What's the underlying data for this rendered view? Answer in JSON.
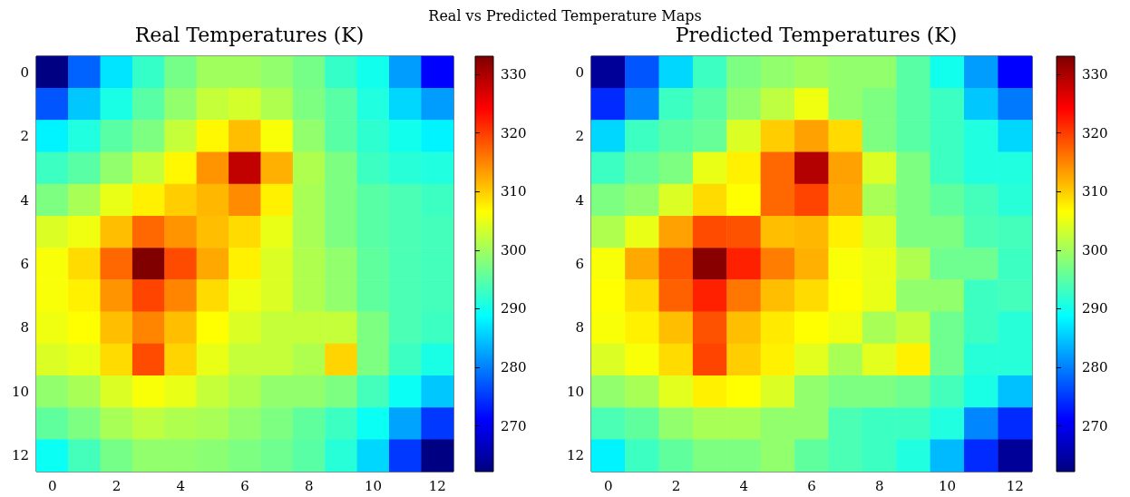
{
  "chart_data": [
    {
      "type": "heatmap",
      "title": "Real Temperatures (K)",
      "annotations": [
        "Real vs Predicted Temperature Maps"
      ],
      "categories": [
        "0",
        null,
        "2",
        null,
        "4",
        null,
        "6",
        null,
        "8",
        null,
        "10",
        null,
        "12"
      ],
      "y_categories": [
        "0",
        null,
        "2",
        null,
        "4",
        null,
        "6",
        null,
        "8",
        null,
        "10",
        null,
        "12"
      ],
      "clim": [
        262.2,
        333.1
      ],
      "cticks": [
        270,
        280,
        290,
        300,
        310,
        320,
        330
      ],
      "cells": [
        [
          262.5,
          278,
          287,
          292.5,
          297,
          300,
          300,
          299,
          297,
          292.5,
          290,
          282,
          271
        ],
        [
          277,
          285,
          290.5,
          295,
          299,
          302.5,
          303.5,
          301,
          297.5,
          295,
          291,
          286,
          282
        ],
        [
          288,
          291,
          295,
          297.5,
          302.5,
          307,
          311,
          306,
          299,
          295,
          292,
          290,
          288
        ],
        [
          293,
          295,
          299,
          302.5,
          307,
          314,
          328.5,
          312,
          301,
          297.5,
          293,
          291.5,
          291
        ],
        [
          297.5,
          300.5,
          305,
          307.5,
          310,
          311.5,
          314.5,
          307.5,
          300.5,
          297.5,
          295,
          294,
          293
        ],
        [
          304,
          305.5,
          311,
          317,
          314,
          311,
          309,
          305,
          300.5,
          297.5,
          295,
          294,
          293.5
        ],
        [
          306,
          309,
          317,
          333,
          319,
          312.5,
          307.5,
          304,
          301,
          299,
          295.5,
          294,
          293.5
        ],
        [
          306,
          307.5,
          314,
          319.5,
          315,
          309,
          305.5,
          304,
          301,
          299,
          295.5,
          294,
          293.5
        ],
        [
          305.5,
          306.5,
          311,
          315,
          311,
          306.5,
          304,
          302.5,
          302.5,
          302.5,
          297.5,
          294,
          293
        ],
        [
          304,
          305,
          309,
          319,
          309.5,
          305,
          302.5,
          302.5,
          301,
          309.5,
          297.5,
          293,
          290.5
        ],
        [
          299,
          300.5,
          304,
          306,
          305,
          302.5,
          301,
          299,
          299,
          297.5,
          293.5,
          289.5,
          285
        ],
        [
          295.5,
          297.5,
          300.5,
          302,
          301,
          300.5,
          299,
          297.5,
          295.5,
          293,
          289.5,
          282.5,
          275
        ],
        [
          289.5,
          293.5,
          297,
          299,
          299,
          298.5,
          297.5,
          296.5,
          295,
          291.5,
          286,
          275,
          262.5
        ]
      ]
    },
    {
      "type": "heatmap",
      "title": "Predicted Temperatures (K)",
      "categories": [
        "0",
        null,
        "2",
        null,
        "4",
        null,
        "6",
        null,
        "8",
        null,
        "10",
        null,
        "12"
      ],
      "y_categories": [
        "0",
        null,
        "2",
        null,
        "4",
        null,
        "6",
        null,
        "8",
        null,
        "10",
        null,
        "12"
      ],
      "clim": [
        262.2,
        333.1
      ],
      "cticks": [
        270,
        280,
        290,
        300,
        310,
        320,
        330
      ],
      "cells": [
        [
          264,
          277,
          286,
          293,
          297.5,
          299,
          300,
          299,
          299,
          295,
          290,
          282,
          271
        ],
        [
          274,
          280.5,
          293,
          295,
          299,
          302,
          305.5,
          299,
          297.5,
          295,
          293,
          285,
          279.5
        ],
        [
          286,
          293,
          295,
          296,
          304,
          310,
          313,
          309,
          297.5,
          295,
          293,
          291,
          286
        ],
        [
          293,
          296,
          297.5,
          305,
          307.5,
          317,
          329.5,
          313,
          304,
          297.5,
          293,
          291,
          291
        ],
        [
          297.5,
          299,
          304,
          309,
          306.5,
          317,
          319.5,
          312.5,
          300.5,
          297.5,
          295.5,
          293.5,
          291.5
        ],
        [
          301,
          305,
          313,
          319,
          318.5,
          311,
          311.5,
          307.5,
          304,
          297.5,
          297.5,
          294,
          293.5
        ],
        [
          306,
          312.5,
          318.5,
          332.5,
          322,
          315.5,
          312,
          306,
          305,
          301,
          296.5,
          296.5,
          293
        ],
        [
          306.5,
          309,
          317.5,
          322,
          316,
          311,
          309,
          306.5,
          305,
          299,
          299,
          293,
          293.5
        ],
        [
          306,
          307.5,
          311,
          318.5,
          311,
          308,
          306.5,
          305.5,
          300.5,
          302.5,
          296.5,
          293,
          291.5
        ],
        [
          304,
          306,
          309,
          319.5,
          310,
          307.5,
          304.5,
          300.5,
          304.5,
          307.5,
          296.5,
          291.5,
          291.5
        ],
        [
          299,
          300.5,
          304.5,
          307.5,
          306.5,
          304,
          299,
          297.5,
          297.5,
          296.5,
          293.5,
          290.5,
          284.5
        ],
        [
          294,
          295.5,
          299,
          300.5,
          300.5,
          299,
          299,
          294,
          293,
          293,
          291,
          280.5,
          274
        ],
        [
          288,
          293,
          295.5,
          297.5,
          297.5,
          299,
          295.5,
          294,
          293,
          291,
          284,
          274,
          264
        ]
      ]
    }
  ]
}
